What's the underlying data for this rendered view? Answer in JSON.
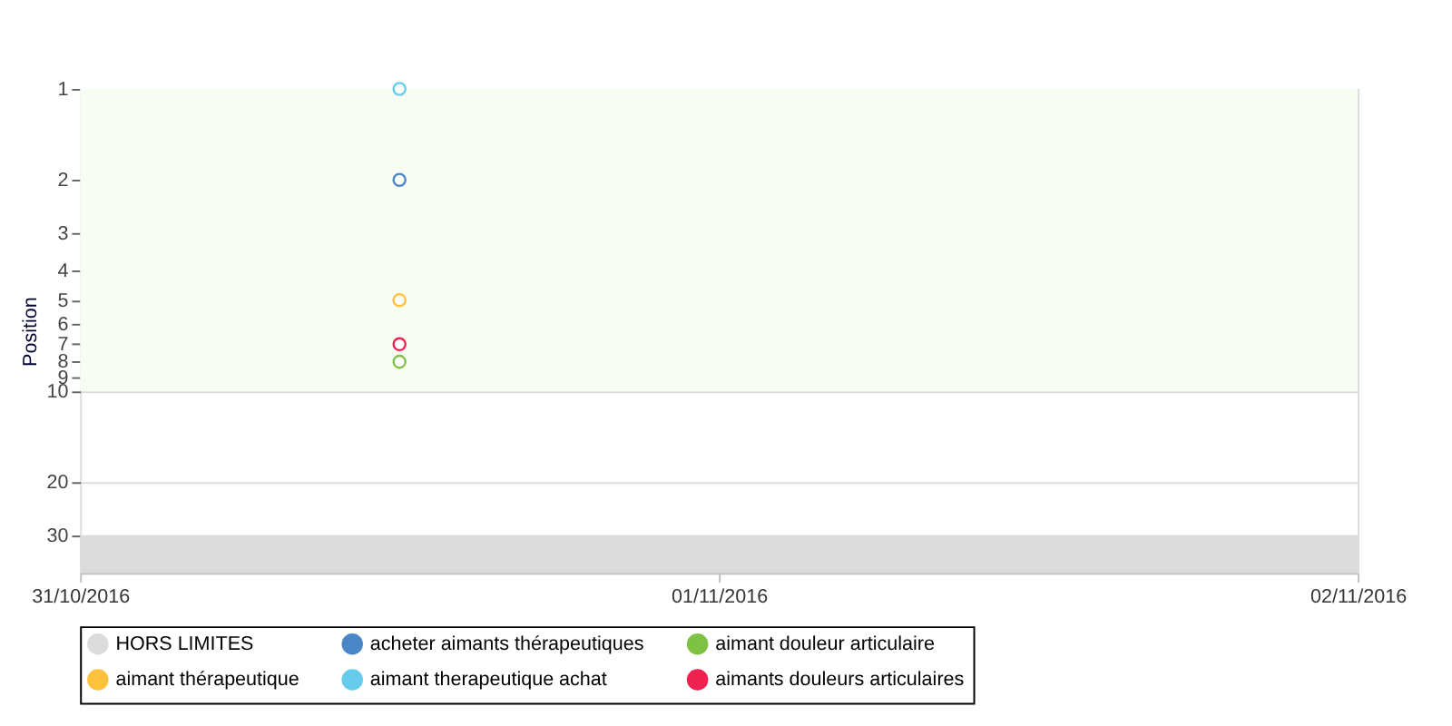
{
  "chart_data": {
    "type": "scatter",
    "ylabel": "Position",
    "marker": "circle",
    "x": [
      "2016-10-31T12:00"
    ],
    "series": [
      {
        "name": "acheter aimants thérapeutiques",
        "color": "#4a86c8",
        "values": [
          2
        ]
      },
      {
        "name": "aimant douleur articulaire",
        "color": "#7dc242",
        "values": [
          8
        ]
      },
      {
        "name": "aimant thérapeutique",
        "color": "#ffc23c",
        "values": [
          5
        ]
      },
      {
        "name": "aimant therapeutique achat",
        "color": "#66ccee",
        "values": [
          1
        ]
      },
      {
        "name": "aimants douleurs articulaires",
        "color": "#ee2250",
        "values": [
          7
        ]
      }
    ],
    "log": "y",
    "ylim": [
      40,
      1
    ],
    "yticks": [
      1,
      2,
      3,
      4,
      5,
      6,
      7,
      8,
      9,
      10,
      20,
      30
    ],
    "xlim": [
      "2016-10-31",
      "2016-11-02"
    ],
    "xticks": [
      {
        "value": "2016-10-31",
        "label": "31/10/2016"
      },
      {
        "value": "2016-11-01",
        "label": "01/11/2016"
      },
      {
        "value": "2016-11-02",
        "label": "02/11/2016"
      }
    ],
    "bands": [
      {
        "axis": "y",
        "from": 1,
        "to": 10,
        "label": null,
        "color": "#f8fdf3"
      },
      {
        "axis": "y",
        "from": 30,
        "to": 40,
        "label": "HORS LIMITES",
        "color": "#dcdcdc"
      }
    ],
    "grid": "y",
    "legend": "bottom"
  }
}
